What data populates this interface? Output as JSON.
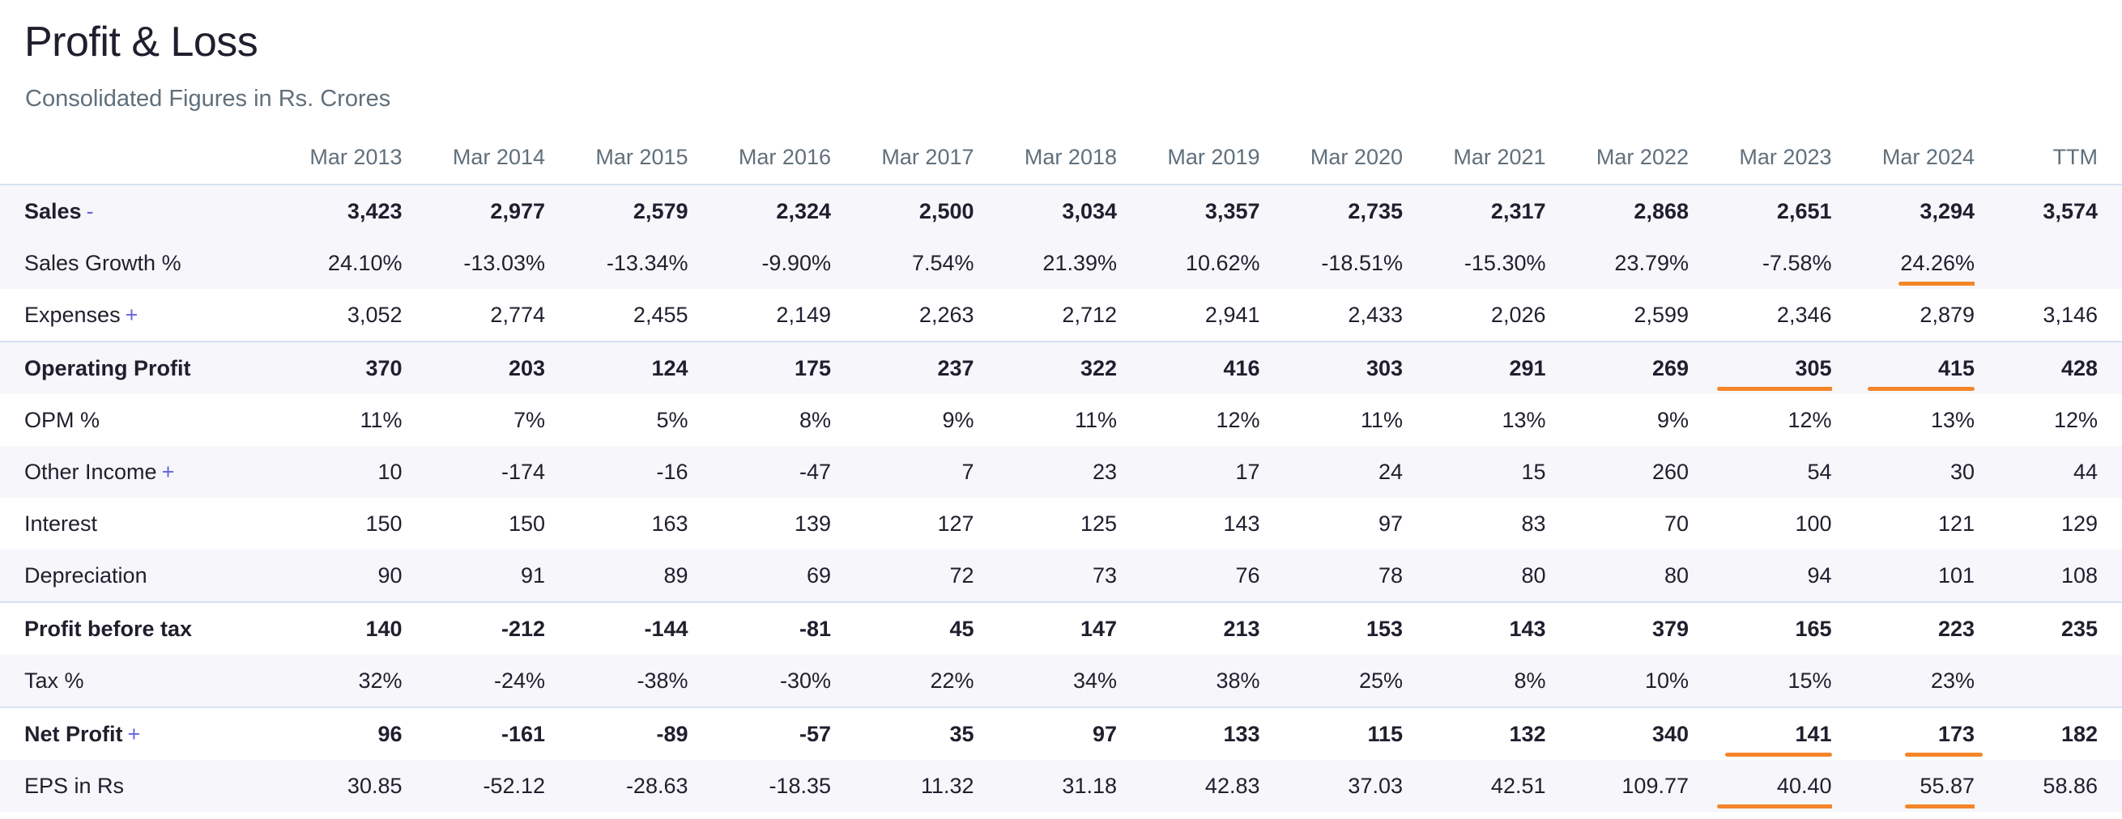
{
  "header": {
    "title": "Profit & Loss",
    "subtitle": "Consolidated Figures in Rs. Crores"
  },
  "table": {
    "columns": [
      "Mar 2013",
      "Mar 2014",
      "Mar 2015",
      "Mar 2016",
      "Mar 2017",
      "Mar 2018",
      "Mar 2019",
      "Mar 2020",
      "Mar 2021",
      "Mar 2022",
      "Mar 2023",
      "Mar 2024",
      "TTM"
    ],
    "rows": {
      "sales": {
        "label": "Sales",
        "toggle": "-",
        "values": [
          "3,423",
          "2,977",
          "2,579",
          "2,324",
          "2,500",
          "3,034",
          "3,357",
          "2,735",
          "2,317",
          "2,868",
          "2,651",
          "3,294",
          "3,574"
        ]
      },
      "sales_growth": {
        "label": "Sales Growth %",
        "values": [
          "24.10%",
          "-13.03%",
          "-13.34%",
          "-9.90%",
          "7.54%",
          "21.39%",
          "10.62%",
          "-18.51%",
          "-15.30%",
          "23.79%",
          "-7.58%",
          "24.26%",
          ""
        ]
      },
      "expenses": {
        "label": "Expenses",
        "toggle": "+",
        "values": [
          "3,052",
          "2,774",
          "2,455",
          "2,149",
          "2,263",
          "2,712",
          "2,941",
          "2,433",
          "2,026",
          "2,599",
          "2,346",
          "2,879",
          "3,146"
        ]
      },
      "operating_profit": {
        "label": "Operating Profit",
        "values": [
          "370",
          "203",
          "124",
          "175",
          "237",
          "322",
          "416",
          "303",
          "291",
          "269",
          "305",
          "415",
          "428"
        ]
      },
      "opm": {
        "label": "OPM %",
        "values": [
          "11%",
          "7%",
          "5%",
          "8%",
          "9%",
          "11%",
          "12%",
          "11%",
          "13%",
          "9%",
          "12%",
          "13%",
          "12%"
        ]
      },
      "other_income": {
        "label": "Other Income",
        "toggle": "+",
        "values": [
          "10",
          "-174",
          "-16",
          "-47",
          "7",
          "23",
          "17",
          "24",
          "15",
          "260",
          "54",
          "30",
          "44"
        ]
      },
      "interest": {
        "label": "Interest",
        "values": [
          "150",
          "150",
          "163",
          "139",
          "127",
          "125",
          "143",
          "97",
          "83",
          "70",
          "100",
          "121",
          "129"
        ]
      },
      "depreciation": {
        "label": "Depreciation",
        "values": [
          "90",
          "91",
          "89",
          "69",
          "72",
          "73",
          "76",
          "78",
          "80",
          "80",
          "94",
          "101",
          "108"
        ]
      },
      "pbt": {
        "label": "Profit before tax",
        "values": [
          "140",
          "-212",
          "-144",
          "-81",
          "45",
          "147",
          "213",
          "153",
          "143",
          "379",
          "165",
          "223",
          "235"
        ]
      },
      "tax": {
        "label": "Tax %",
        "values": [
          "32%",
          "-24%",
          "-38%",
          "-30%",
          "22%",
          "34%",
          "38%",
          "25%",
          "8%",
          "10%",
          "15%",
          "23%",
          ""
        ]
      },
      "net_profit": {
        "label": "Net Profit",
        "toggle": "+",
        "values": [
          "96",
          "-161",
          "-89",
          "-57",
          "35",
          "97",
          "133",
          "115",
          "132",
          "340",
          "141",
          "173",
          "182"
        ]
      },
      "eps": {
        "label": "EPS in Rs",
        "values": [
          "30.85",
          "-52.12",
          "-28.63",
          "-18.35",
          "11.32",
          "31.18",
          "42.83",
          "37.03",
          "42.51",
          "109.77",
          "40.40",
          "55.87",
          "58.86"
        ]
      }
    }
  },
  "colors": {
    "accent": "#6564e0",
    "highlight_underline": "#f48629",
    "row_shade": "#f6f6fb",
    "separator": "#d4e2f2",
    "muted_text": "#606f7b"
  }
}
